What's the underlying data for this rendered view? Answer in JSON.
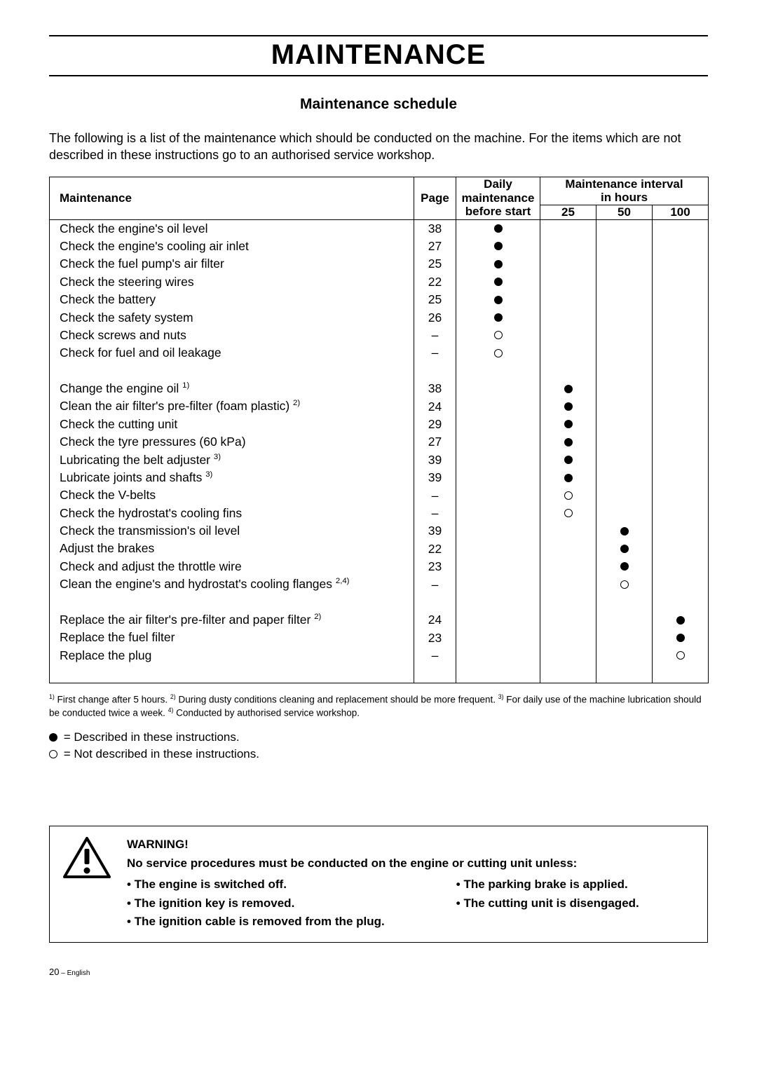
{
  "title": "MAINTENANCE",
  "subtitle": "Maintenance schedule",
  "intro": "The following is a list of the maintenance which should be conducted on the machine. For the items which are not described in these instructions go to an authorised service workshop.",
  "headers": {
    "maintenance": "Maintenance",
    "page": "Page",
    "daily_l1": "Daily",
    "daily_l2": "maintenance",
    "daily_l3": "before start",
    "interval_l1": "Maintenance interval",
    "interval_l2": "in hours",
    "h25": "25",
    "h50": "50",
    "h100": "100"
  },
  "groups": [
    {
      "rows": [
        {
          "task": "Check the engine's oil level",
          "page": "38",
          "daily": "dot",
          "h25": "",
          "h50": "",
          "h100": ""
        },
        {
          "task": "Check the engine's cooling air inlet",
          "page": "27",
          "daily": "dot",
          "h25": "",
          "h50": "",
          "h100": ""
        },
        {
          "task": "Check the fuel pump's air filter",
          "page": "25",
          "daily": "dot",
          "h25": "",
          "h50": "",
          "h100": ""
        },
        {
          "task": "Check the steering wires",
          "page": "22",
          "daily": "dot",
          "h25": "",
          "h50": "",
          "h100": ""
        },
        {
          "task": "Check the battery",
          "page": "25",
          "daily": "dot",
          "h25": "",
          "h50": "",
          "h100": ""
        },
        {
          "task": "Check the safety system",
          "page": "26",
          "daily": "dot",
          "h25": "",
          "h50": "",
          "h100": ""
        },
        {
          "task": "Check screws and nuts",
          "page": "–",
          "daily": "ring",
          "h25": "",
          "h50": "",
          "h100": ""
        },
        {
          "task": "Check for fuel and oil leakage",
          "page": "–",
          "daily": "ring",
          "h25": "",
          "h50": "",
          "h100": ""
        }
      ]
    },
    {
      "rows": [
        {
          "task": "Change the engine oil",
          "sup": "1)",
          "page": "38",
          "daily": "",
          "h25": "dot",
          "h50": "",
          "h100": ""
        },
        {
          "task": "Clean the air filter's pre-filter (foam plastic)",
          "sup": "2)",
          "page": "24",
          "daily": "",
          "h25": "dot",
          "h50": "",
          "h100": ""
        },
        {
          "task": "Check the cutting unit",
          "page": "29",
          "daily": "",
          "h25": "dot",
          "h50": "",
          "h100": ""
        },
        {
          "task": "Check the tyre pressures (60 kPa)",
          "page": "27",
          "daily": "",
          "h25": "dot",
          "h50": "",
          "h100": ""
        },
        {
          "task": "Lubricating the belt adjuster",
          "sup": "3)",
          "page": "39",
          "daily": "",
          "h25": "dot",
          "h50": "",
          "h100": ""
        },
        {
          "task": "Lubricate joints and shafts",
          "sup": "3)",
          "page": "39",
          "daily": "",
          "h25": "dot",
          "h50": "",
          "h100": ""
        },
        {
          "task": "Check the V-belts",
          "page": "–",
          "daily": "",
          "h25": "ring",
          "h50": "",
          "h100": ""
        },
        {
          "task": "Check the hydrostat's cooling fins",
          "page": "–",
          "daily": "",
          "h25": "ring",
          "h50": "",
          "h100": ""
        },
        {
          "task": "Check the transmission's oil level",
          "page": "39",
          "daily": "",
          "h25": "",
          "h50": "dot",
          "h100": ""
        },
        {
          "task": "Adjust the brakes",
          "page": "22",
          "daily": "",
          "h25": "",
          "h50": "dot",
          "h100": ""
        },
        {
          "task": "Check and adjust the throttle wire",
          "page": "23",
          "daily": "",
          "h25": "",
          "h50": "dot",
          "h100": ""
        },
        {
          "task": "Clean the engine's and hydrostat's cooling flanges",
          "sup": "2,4)",
          "page": "–",
          "daily": "",
          "h25": "",
          "h50": "ring",
          "h100": ""
        }
      ]
    },
    {
      "rows": [
        {
          "task": "Replace the air filter's pre-filter and paper filter",
          "sup": "2)",
          "page": "24",
          "daily": "",
          "h25": "",
          "h50": "",
          "h100": "dot"
        },
        {
          "task": "Replace the fuel filter",
          "page": "23",
          "daily": "",
          "h25": "",
          "h50": "",
          "h100": "dot"
        },
        {
          "task": "Replace the plug",
          "page": "–",
          "daily": "",
          "h25": "",
          "h50": "",
          "h100": "ring"
        }
      ]
    }
  ],
  "footnote_parts": {
    "p1a": "1)",
    "p1b": " First change after 5 hours. ",
    "p2a": "2)",
    "p2b": " During dusty conditions cleaning and replacement should be more frequent. ",
    "p3a": "3)",
    "p3b": " For daily use of the machine lubrication should be conducted twice a week. ",
    "p4a": "4)",
    "p4b": " Conducted by authorised service workshop."
  },
  "legend": {
    "described": " = Described in these instructions.",
    "not_described": " = Not described in these instructions."
  },
  "warning": {
    "head": "WARNING!",
    "lead": "No service procedures must be conducted on the engine or cutting unit unless:",
    "colA": [
      "•   The engine is switched off.",
      "•   The ignition key is removed.",
      "•   The ignition cable is removed from the plug."
    ],
    "colB": [
      "•   The parking brake is applied.",
      "•   The cutting unit is disengaged."
    ]
  },
  "pagenum": {
    "num": "20",
    "suffix": " – English"
  },
  "colors": {
    "text": "#000000",
    "bg": "#ffffff",
    "border": "#000000"
  }
}
